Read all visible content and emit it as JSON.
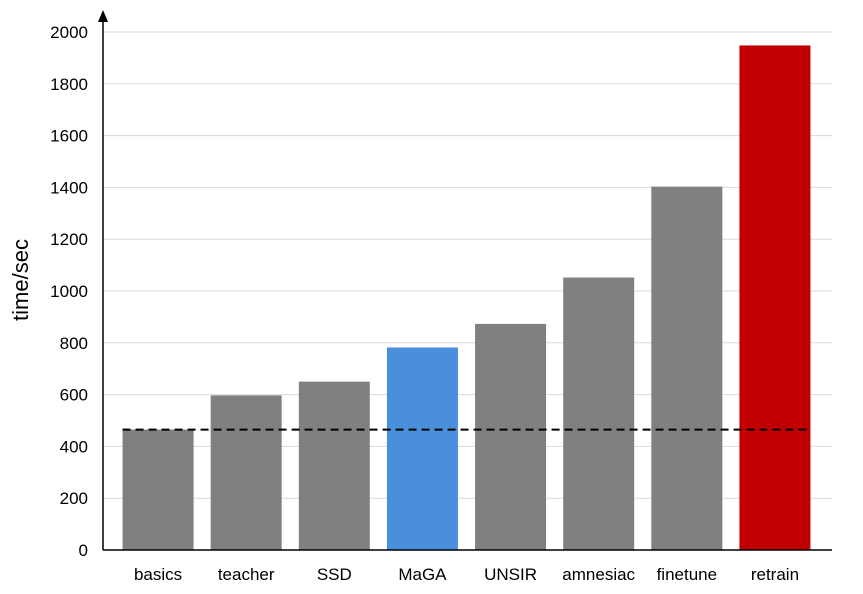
{
  "chart_data": {
    "type": "bar",
    "title": "",
    "xlabel": "",
    "ylabel": "time/sec",
    "categories": [
      "basics",
      "teacher",
      "SSD",
      "MaGA",
      "UNSIR",
      "amnesiac",
      "finetune",
      "retrain"
    ],
    "values": [
      465,
      597,
      650,
      782,
      873,
      1052,
      1403,
      1948
    ],
    "bar_colors": [
      "#808080",
      "#808080",
      "#808080",
      "#4a8fdb",
      "#808080",
      "#808080",
      "#808080",
      "#c00000"
    ],
    "ylim": [
      0,
      2000
    ],
    "yticks": [
      0,
      200,
      400,
      600,
      800,
      1000,
      1200,
      1400,
      1600,
      1800,
      2000
    ],
    "grid": true,
    "reference_line": {
      "value": 465,
      "style": "dashed",
      "color": "#000000"
    },
    "legend": "none"
  }
}
